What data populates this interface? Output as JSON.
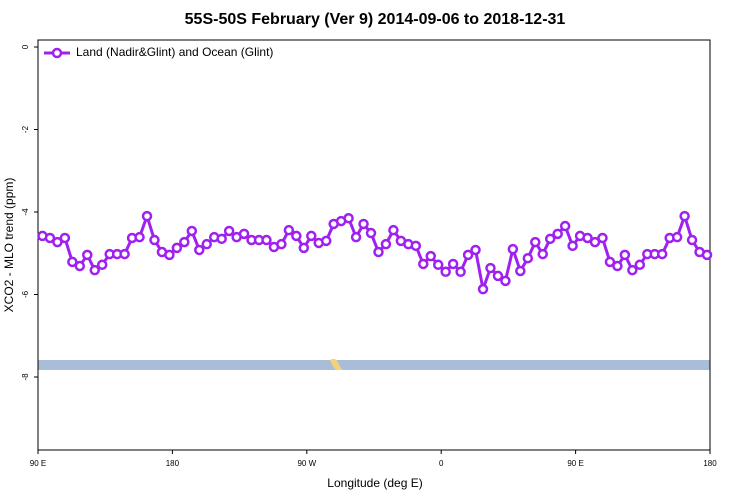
{
  "chart_data": {
    "type": "line",
    "title": "55S-50S February (Ver 9)   2014-09-06 to 2018-12-31",
    "x_label": "Longitude (deg E)",
    "y_label": "XCO2 - MLO trend (ppm)",
    "x": [
      93,
      98,
      103,
      108,
      113,
      118,
      123,
      128,
      133,
      138,
      143,
      148,
      153,
      158,
      163,
      168,
      173,
      178,
      183,
      188,
      193,
      198,
      203,
      208,
      213,
      218,
      223,
      228,
      233,
      238,
      243,
      248,
      253,
      258,
      263,
      268,
      273,
      278,
      283,
      288,
      293,
      298,
      303,
      308,
      313,
      318,
      323,
      328,
      333,
      338,
      343,
      348,
      353,
      358,
      363,
      368,
      373,
      378,
      383,
      388,
      393,
      398,
      403,
      408,
      413,
      418,
      423,
      428,
      433,
      438,
      443,
      448,
      453,
      458,
      463,
      468,
      473,
      478,
      483,
      488,
      493,
      498,
      503,
      508,
      513,
      518,
      523,
      528,
      533,
      538
    ],
    "series": [
      {
        "name": "Land (Nadir&Glint) and Ocean (Glint)",
        "color": "#a020f0",
        "values": [
          -4.58,
          -4.63,
          -4.73,
          -4.63,
          -5.21,
          -5.31,
          -5.04,
          -5.41,
          -5.28,
          -5.02,
          -5.02,
          -5.02,
          -4.63,
          -4.61,
          -4.1,
          -4.68,
          -4.97,
          -5.04,
          -4.87,
          -4.73,
          -4.46,
          -4.92,
          -4.78,
          -4.61,
          -4.65,
          -4.46,
          -4.61,
          -4.53,
          -4.68,
          -4.68,
          -4.68,
          -4.85,
          -4.78,
          -4.44,
          -4.58,
          -4.87,
          -4.58,
          -4.75,
          -4.7,
          -4.29,
          -4.22,
          -4.15,
          -4.61,
          -4.29,
          -4.51,
          -4.97,
          -4.78,
          -4.44,
          -4.7,
          -4.78,
          -4.82,
          -5.26,
          -5.07,
          -5.28,
          -5.45,
          -5.26,
          -5.45,
          -5.04,
          -4.92,
          -5.87,
          -5.36,
          -5.55,
          -5.67,
          -4.9,
          -5.43,
          -5.12,
          -4.73,
          -5.02,
          -4.65,
          -4.53,
          -4.34,
          -4.82,
          -4.58,
          -4.63,
          -4.73,
          -4.63,
          -5.21,
          -5.31,
          -5.04,
          -5.41,
          -5.28,
          -5.02,
          -5.02,
          -5.02,
          -4.63,
          -4.61,
          -4.1,
          -4.68,
          -4.97,
          -5.04
        ]
      }
    ],
    "xlim": [
      90,
      540
    ],
    "xticks": [
      {
        "value": 90,
        "label": "90 E"
      },
      180,
      {
        "value": 270,
        "label": "90 W"
      },
      {
        "value": 360,
        "label": "0"
      },
      {
        "value": 450,
        "label": "90 E"
      },
      {
        "value": 540,
        "label": "180"
      }
    ],
    "ylim": [
      -9.77,
      0.17
    ],
    "yticks": [
      0,
      -2,
      -4,
      -6,
      -8
    ],
    "legend": "top-left"
  }
}
